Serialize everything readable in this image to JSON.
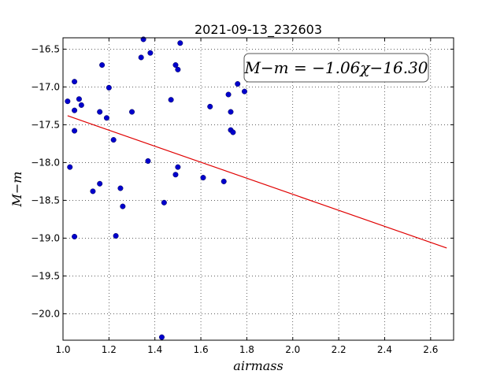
{
  "chart_data": {
    "type": "scatter",
    "title": "2021-09-13_232603",
    "xlabel": "airmass",
    "ylabel": "M−m",
    "xlim": [
      1.0,
      2.7
    ],
    "ylim": [
      -20.35,
      -16.35
    ],
    "xticks": [
      1.0,
      1.2,
      1.4,
      1.6,
      1.8,
      2.0,
      2.2,
      2.4,
      2.6
    ],
    "xtick_labels": [
      "1.0",
      "1.2",
      "1.4",
      "1.6",
      "1.8",
      "2.0",
      "2.2",
      "2.4",
      "2.6"
    ],
    "yticks": [
      -16.5,
      -17.0,
      -17.5,
      -18.0,
      -18.5,
      -19.0,
      -19.5,
      -20.0
    ],
    "ytick_labels": [
      "−16.5",
      "−17.0",
      "−17.5",
      "−18.0",
      "−18.5",
      "−19.0",
      "−19.5",
      "−20.0"
    ],
    "grid": true,
    "annotation": "M−m = −1.06χ−16.30",
    "annotation_placement": "top-right",
    "fit_line": {
      "slope": -1.06,
      "intercept": -16.3,
      "x": [
        1.02,
        2.67
      ],
      "color": "#e00000"
    },
    "point_color": "#0000cc",
    "points": {
      "x": [
        1.35,
        1.51,
        1.34,
        1.38,
        1.17,
        1.49,
        1.5,
        1.05,
        1.76,
        1.2,
        1.79,
        1.72,
        1.47,
        1.07,
        1.02,
        1.08,
        1.64,
        1.05,
        1.16,
        1.73,
        1.3,
        1.19,
        1.05,
        1.73,
        1.74,
        1.22,
        1.37,
        1.03,
        1.5,
        1.49,
        1.61,
        1.7,
        1.16,
        1.25,
        1.13,
        1.44,
        1.26,
        1.23,
        1.05,
        1.43
      ],
      "y": [
        -16.37,
        -16.42,
        -16.61,
        -16.55,
        -16.71,
        -16.71,
        -16.77,
        -16.93,
        -16.96,
        -17.01,
        -17.06,
        -17.1,
        -17.17,
        -17.16,
        -17.19,
        -17.24,
        -17.26,
        -17.31,
        -17.33,
        -17.33,
        -17.33,
        -17.41,
        -17.58,
        -17.57,
        -17.6,
        -17.7,
        -17.98,
        -18.06,
        -18.06,
        -18.16,
        -18.2,
        -18.25,
        -18.28,
        -18.34,
        -18.38,
        -18.53,
        -18.58,
        -18.97,
        -18.98,
        -20.31
      ]
    }
  }
}
